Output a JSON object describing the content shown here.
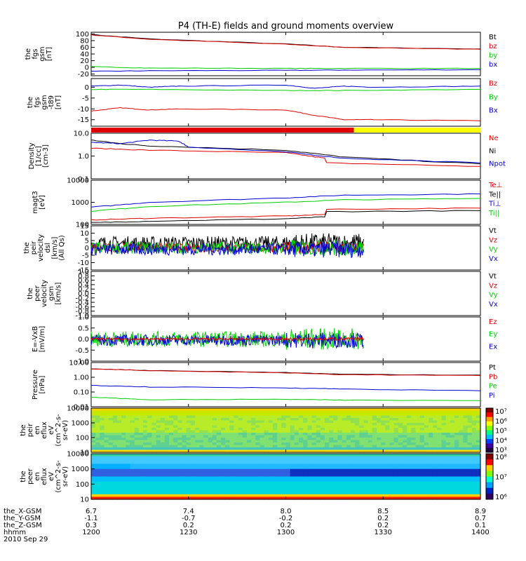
{
  "title": "P4 (TH-E) fields and ground moments overview",
  "colors": {
    "black": "#000000",
    "red": "#e00000",
    "green": "#00d000",
    "blue": "#0000d0",
    "yellow": "#ffff00"
  },
  "chart_data": [
    {
      "id": "fgs_gsm",
      "type": "line",
      "ylabel": [
        "the",
        "fgs",
        "gsm",
        "[nT]"
      ],
      "yticks": [
        100,
        80,
        60,
        40,
        20,
        0,
        -20
      ],
      "ylim": [
        -25,
        105
      ],
      "legend": [
        {
          "name": "Bt",
          "color": "#000000"
        },
        {
          "name": "bz",
          "color": "#e00000"
        },
        {
          "name": "by",
          "color": "#00d000"
        },
        {
          "name": "bx",
          "color": "#0000d0"
        }
      ],
      "series": [
        {
          "name": "Bt",
          "color": "#000000",
          "x": [
            1200,
            1230,
            1300,
            1330,
            1400
          ],
          "y": [
            98,
            85,
            70,
            60,
            55
          ]
        },
        {
          "name": "bz",
          "color": "#e00000",
          "x": [
            1200,
            1230,
            1300,
            1330,
            1400
          ],
          "y": [
            97,
            84,
            69,
            60,
            54
          ]
        },
        {
          "name": "by",
          "color": "#00d000",
          "x": [
            1200,
            1230,
            1300,
            1330,
            1400
          ],
          "y": [
            2,
            -2,
            -3,
            -3,
            -3
          ]
        },
        {
          "name": "bx",
          "color": "#0000d0",
          "x": [
            1200,
            1230,
            1300,
            1330,
            1400
          ],
          "y": [
            -12,
            -10,
            -9,
            -8,
            -7
          ]
        }
      ]
    },
    {
      "id": "fgs_dsl",
      "type": "line",
      "ylabel": [
        "the",
        "fgs",
        "gsm",
        "-t89",
        "[nT]"
      ],
      "yticks": [
        0,
        -5,
        -10,
        -15
      ],
      "ylim": [
        -18,
        4
      ],
      "legend": [
        {
          "name": "Bz",
          "color": "#e00000"
        },
        {
          "name": "By",
          "color": "#00d000"
        },
        {
          "name": "Bx",
          "color": "#0000d0"
        }
      ],
      "series": [
        {
          "name": "Bz",
          "color": "#e00000",
          "x": [
            1200,
            1215,
            1230,
            1245,
            1300,
            1315,
            1330,
            1345,
            1400
          ],
          "y": [
            -11,
            -9.5,
            -10.5,
            -10,
            -10.5,
            -13,
            -15,
            -15,
            -15.5
          ]
        },
        {
          "name": "By",
          "color": "#00d000",
          "x": [
            1200,
            1230,
            1300,
            1330,
            1400
          ],
          "y": [
            -1,
            -1,
            -1.5,
            -1.5,
            -1
          ]
        },
        {
          "name": "Bx",
          "color": "#0000d0",
          "x": [
            1200,
            1215,
            1230,
            1245,
            1300,
            1315,
            1330,
            1345,
            1400
          ],
          "y": [
            0.5,
            1,
            0,
            0.5,
            1,
            -0.5,
            0.5,
            0,
            0.5
          ]
        }
      ]
    },
    {
      "id": "mode_bar",
      "type": "bar",
      "segments": [
        {
          "from": 1200,
          "to": 1335,
          "color": "#e00000"
        },
        {
          "from": 1335,
          "to": 1400,
          "color": "#ffff00"
        }
      ]
    },
    {
      "id": "density",
      "type": "line",
      "scale": "log",
      "ylabel": [
        "Density",
        "[1/cc]",
        "[cm-3]"
      ],
      "yticks": [
        "10.0",
        "1.0",
        "0.1"
      ],
      "ylim": [
        0.1,
        10
      ],
      "legend": [
        {
          "name": "Ne",
          "color": "#e00000"
        },
        {
          "name": "Ni",
          "color": "#000000"
        },
        {
          "name": "Npot",
          "color": "#0000d0"
        }
      ],
      "series": [
        {
          "name": "Ne",
          "color": "#e00000",
          "x": [
            1200,
            1230,
            1300,
            1320,
            1321,
            1400
          ],
          "y": [
            2.2,
            1.8,
            1.4,
            0.8,
            0.5,
            0.35
          ]
        },
        {
          "name": "Ni",
          "color": "#000000",
          "x": [
            1200,
            1215,
            1230,
            1300,
            1330,
            1400
          ],
          "y": [
            5,
            3.5,
            2.8,
            1.8,
            0.9,
            0.45
          ]
        },
        {
          "name": "Npot",
          "color": "#0000d0",
          "x": [
            1200,
            1215,
            1230,
            1245,
            1250,
            1300,
            1330,
            1400
          ],
          "y": [
            4,
            3.5,
            5,
            4.5,
            2.5,
            1.5,
            0.8,
            0.5
          ]
        }
      ]
    },
    {
      "id": "temp",
      "type": "line",
      "scale": "log",
      "ylabel": [
        "magt3",
        "[eV]"
      ],
      "yticks": [
        "10000",
        "1000",
        "100"
      ],
      "ylim": [
        100,
        10000
      ],
      "legend": [
        {
          "name": "Te⊥",
          "color": "#e00000"
        },
        {
          "name": "Te||",
          "color": "#000000"
        },
        {
          "name": "Ti⊥",
          "color": "#0000d0"
        },
        {
          "name": "Ti||",
          "color": "#00d000"
        }
      ],
      "series": [
        {
          "name": "Te⊥",
          "color": "#e00000",
          "x": [
            1200,
            1230,
            1300,
            1320,
            1321,
            1400
          ],
          "y": [
            160,
            190,
            240,
            280,
            480,
            550
          ]
        },
        {
          "name": "Te||",
          "color": "#000000",
          "x": [
            1200,
            1230,
            1300,
            1320,
            1321,
            1400
          ],
          "y": [
            120,
            140,
            180,
            220,
            380,
            420
          ]
        },
        {
          "name": "Ti⊥",
          "color": "#0000d0",
          "x": [
            1200,
            1230,
            1300,
            1330,
            1400
          ],
          "y": [
            600,
            1000,
            1600,
            2100,
            2400
          ]
        },
        {
          "name": "Ti||",
          "color": "#00d000",
          "x": [
            1200,
            1230,
            1300,
            1330,
            1400
          ],
          "y": [
            400,
            650,
            1000,
            1300,
            1500
          ]
        }
      ]
    },
    {
      "id": "peir_vel",
      "type": "line",
      "ylabel": [
        "the",
        "peir",
        "velocity",
        "dsl",
        "[km/s]",
        "(All Qs)"
      ],
      "yticks": [
        15,
        10,
        5,
        0,
        -5,
        -10,
        -15
      ],
      "ylim": [
        -15,
        15
      ],
      "xrange": [
        1200,
        1340
      ],
      "legend": [
        {
          "name": "Vt",
          "color": "#000000"
        },
        {
          "name": "Vz",
          "color": "#e00000"
        },
        {
          "name": "Vy",
          "color": "#00d000"
        },
        {
          "name": "Vx",
          "color": "#0000d0"
        }
      ],
      "series": [
        {
          "name": "Vt",
          "color": "#000000",
          "center": 3,
          "amp": 5
        },
        {
          "name": "Vz",
          "color": "#e00000",
          "center": 0,
          "amp": 3
        },
        {
          "name": "Vy",
          "color": "#00d000",
          "center": 0,
          "amp": 4
        },
        {
          "name": "Vx",
          "color": "#0000d0",
          "center": -1,
          "amp": 4
        }
      ]
    },
    {
      "id": "peer_vel",
      "type": "line",
      "ylabel": [
        "the",
        "peer",
        "velocity",
        "gsm",
        "[km/s]"
      ],
      "yticks": [
        "1.0",
        "0.8",
        "0.6",
        "0.4",
        "0.2",
        "0.0",
        "-0.2",
        "-0.4",
        "-0.6",
        "-0.8",
        "-1.0"
      ],
      "ylim": [
        -1,
        1
      ],
      "legend": [
        {
          "name": "Vt",
          "color": "#000000"
        },
        {
          "name": "Vz",
          "color": "#e00000"
        },
        {
          "name": "Vy",
          "color": "#00d000"
        },
        {
          "name": "Vx",
          "color": "#0000d0"
        }
      ],
      "series": []
    },
    {
      "id": "efield",
      "type": "line",
      "ylabel": [
        "E=-VxB",
        "[mV/m]"
      ],
      "yticks": [
        "1.0",
        "0.5",
        "0.0",
        "-0.5",
        "-1.0"
      ],
      "ylim": [
        -1,
        1
      ],
      "xrange": [
        1200,
        1340
      ],
      "legend": [
        {
          "name": "Ez",
          "color": "#e00000"
        },
        {
          "name": "Ey",
          "color": "#00d000"
        },
        {
          "name": "Ex",
          "color": "#0000d0"
        }
      ],
      "series": [
        {
          "name": "Ey",
          "color": "#00d000",
          "center": 0,
          "amp": 0.35
        },
        {
          "name": "Ex",
          "color": "#0000d0",
          "center": -0.05,
          "amp": 0.25
        },
        {
          "name": "Ez",
          "color": "#e00000",
          "center": 0,
          "amp": 0.05
        }
      ]
    },
    {
      "id": "pressure",
      "type": "line",
      "scale": "log",
      "ylabel": [
        "Pressure",
        "[nPa]"
      ],
      "yticks": [
        "10.00",
        "1.00",
        "0.10",
        "0.01"
      ],
      "ylim": [
        0.01,
        10
      ],
      "legend": [
        {
          "name": "Pt",
          "color": "#000000"
        },
        {
          "name": "Pb",
          "color": "#e00000"
        },
        {
          "name": "Pe",
          "color": "#00d000"
        },
        {
          "name": "Pi",
          "color": "#0000d0"
        }
      ],
      "series": [
        {
          "name": "Pt",
          "color": "#000000",
          "x": [
            1200,
            1230,
            1300,
            1330,
            1400
          ],
          "y": [
            3.8,
            2.9,
            2.1,
            1.6,
            1.4
          ]
        },
        {
          "name": "Pb",
          "color": "#e00000",
          "x": [
            1200,
            1230,
            1300,
            1330,
            1400
          ],
          "y": [
            3.7,
            2.8,
            2.0,
            1.5,
            1.3
          ]
        },
        {
          "name": "Pi",
          "color": "#0000d0",
          "x": [
            1200,
            1230,
            1300,
            1330,
            1400
          ],
          "y": [
            0.28,
            0.22,
            0.19,
            0.16,
            0.12
          ]
        },
        {
          "name": "Pe",
          "color": "#00d000",
          "x": [
            1200,
            1230,
            1300,
            1330,
            1400
          ],
          "y": [
            0.045,
            0.03,
            0.032,
            0.028,
            0.026
          ]
        }
      ]
    },
    {
      "id": "peir_eflux",
      "type": "heatmap",
      "ylabel": [
        "the",
        "peir",
        "en",
        "eflux",
        "eV",
        "(cm^2-s-",
        "sr-eV)"
      ],
      "yticks": [
        "10000",
        "1000",
        "100",
        "10"
      ],
      "colorbar": [
        "10⁷",
        "10⁶",
        "10⁵",
        "10⁴",
        "10³"
      ]
    },
    {
      "id": "peer_eflux",
      "type": "heatmap",
      "ylabel": [
        "the",
        "peer",
        "en",
        "eflux",
        "eV",
        "(cm^2-s-",
        "sr-eV)"
      ],
      "yticks": [
        "10000",
        "1000",
        "100",
        "10"
      ],
      "colorbar": [
        "10⁸",
        "10⁷",
        "10⁶"
      ]
    }
  ],
  "xaxis": {
    "rows": [
      {
        "label": "the_X-GSM",
        "values": [
          "6.7",
          "7.4",
          "8.0",
          "8.5",
          "8.9"
        ]
      },
      {
        "label": "the_Y-GSM",
        "values": [
          "-1.1",
          "-0.7",
          "-0.2",
          "0.2",
          "0.7"
        ]
      },
      {
        "label": "the_Z-GSM",
        "values": [
          "0.3",
          "0.2",
          "0.2",
          "0.2",
          "0.1"
        ]
      },
      {
        "label": "hhmm",
        "values": [
          "1200",
          "1230",
          "1300",
          "1330",
          "1400"
        ]
      }
    ],
    "date": "2010 Sep 29"
  }
}
